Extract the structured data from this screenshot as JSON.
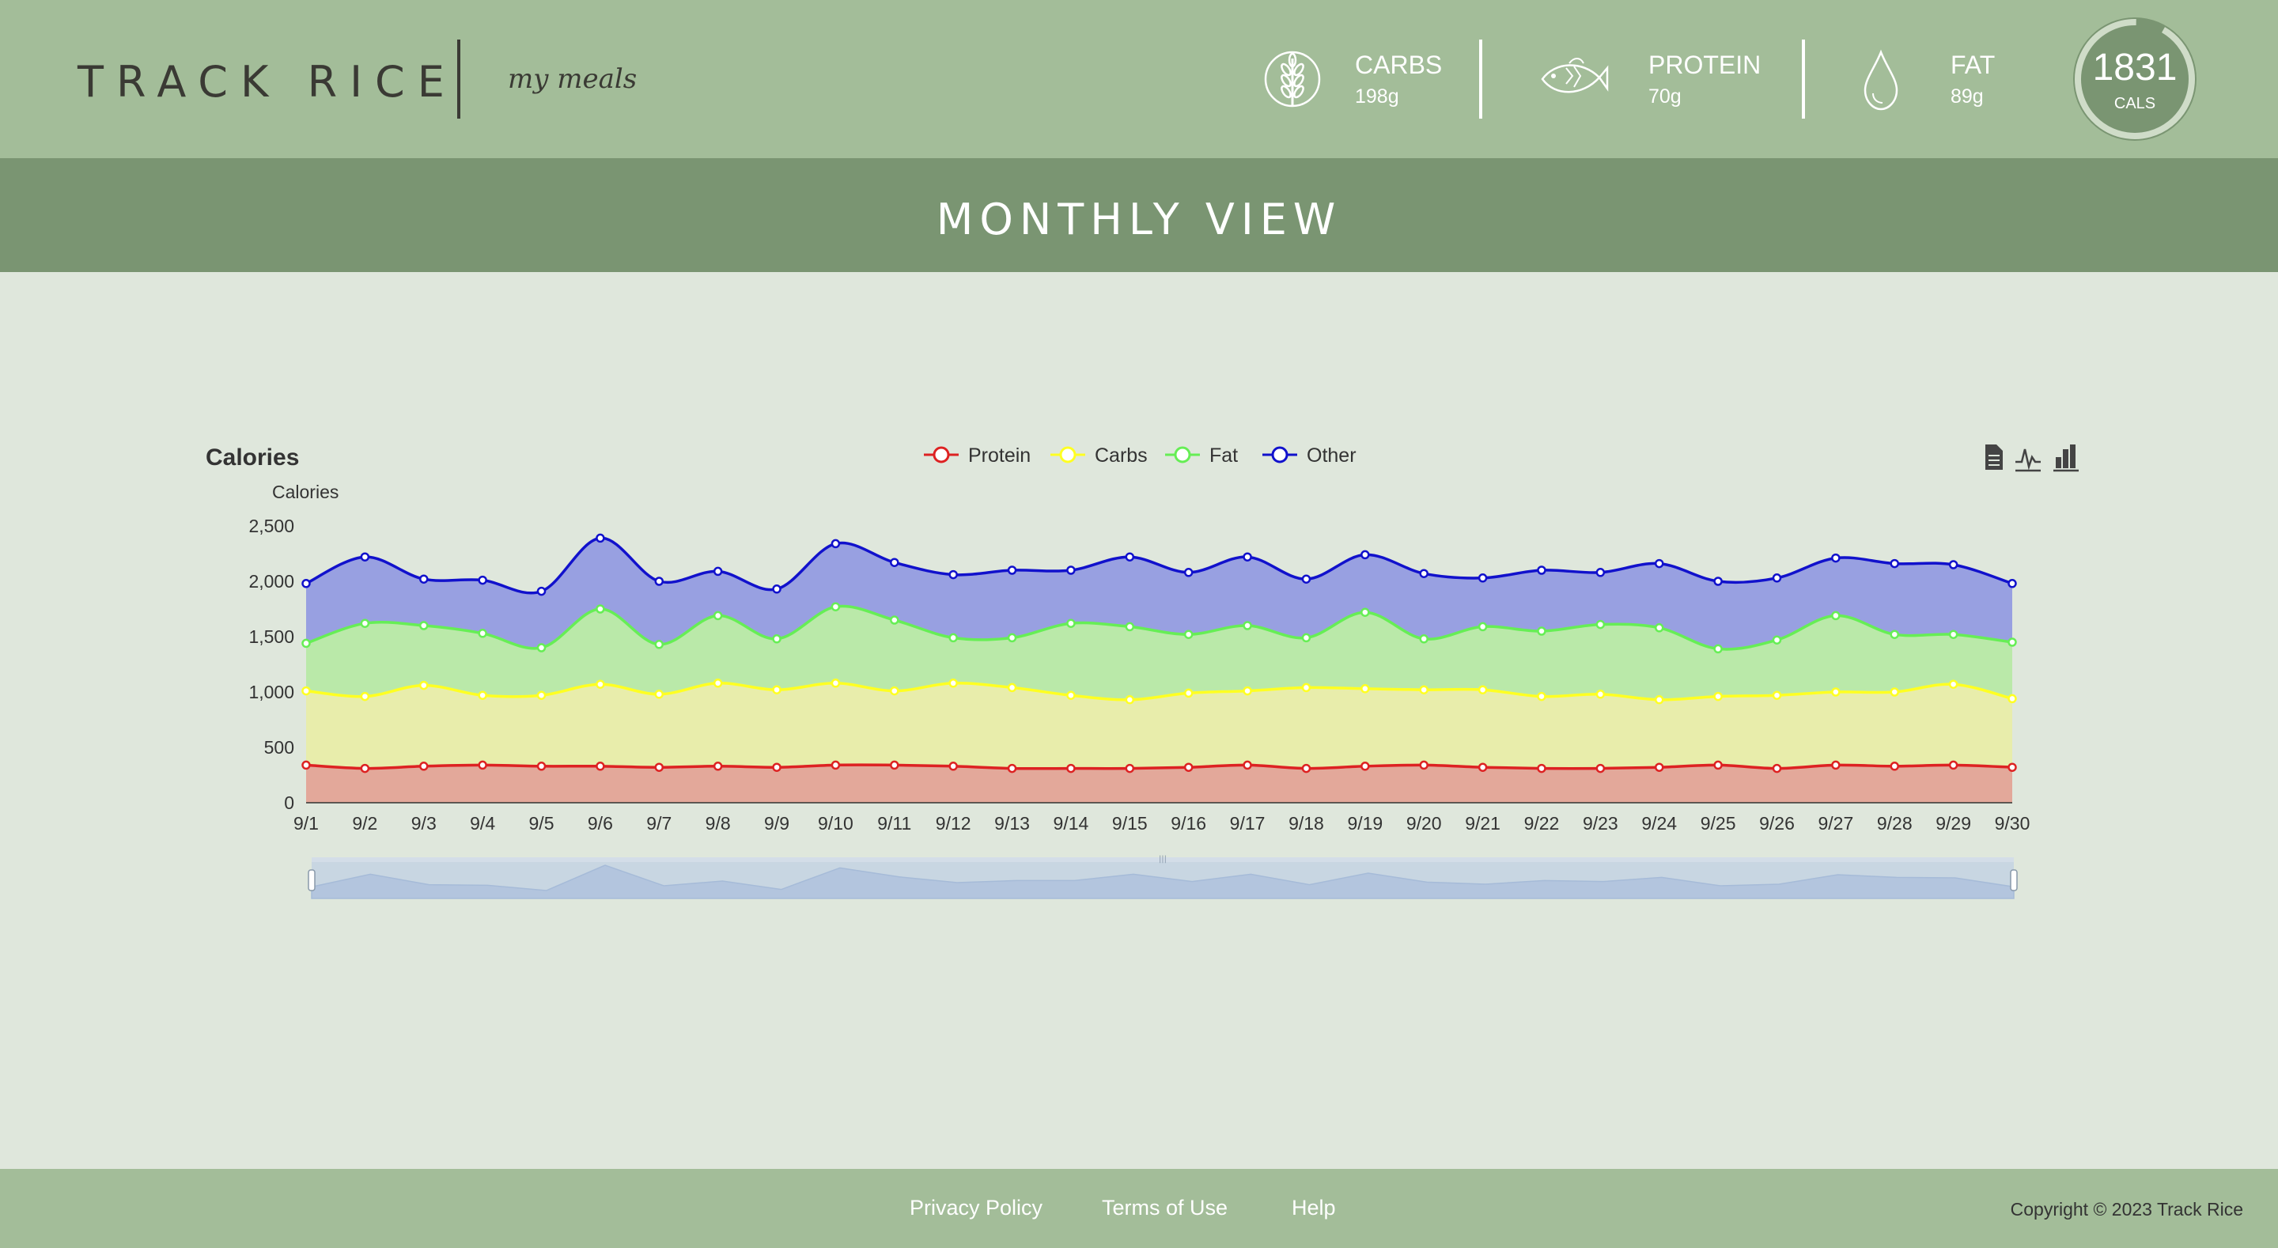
{
  "header": {
    "brand": "TRACK RICE",
    "subtitle": "my meals",
    "macros": [
      {
        "label": "CARBS",
        "amount": "198g",
        "icon": "wheat-icon"
      },
      {
        "label": "PROTEIN",
        "amount": "70g",
        "icon": "fish-icon"
      },
      {
        "label": "FAT",
        "amount": "89g",
        "icon": "drop-icon"
      }
    ],
    "calories": {
      "value": "1831",
      "unit": "CALS",
      "ring_fraction": 0.92
    }
  },
  "banner": {
    "title": "MONTHLY VIEW"
  },
  "colors": {
    "header_bg": "#a3bd99",
    "banner_bg": "#7a9572",
    "page_bg": "#dfe7dc",
    "protein": "#dd2222",
    "carbs": "#ffff22",
    "fat": "#66ee55",
    "other": "#1111cc"
  },
  "chart_tools": [
    "data-view-icon",
    "line-chart-icon",
    "bar-chart-icon"
  ],
  "chart_data": {
    "type": "area",
    "stacked": true,
    "title": "Calories",
    "ylabel": "Calories",
    "ylim": [
      0,
      2500
    ],
    "yticks": [
      "0",
      "500",
      "1,000",
      "1,500",
      "2,000",
      "2,500"
    ],
    "grid": false,
    "legend_position": "top-center",
    "x": [
      "9/1",
      "9/2",
      "9/3",
      "9/4",
      "9/5",
      "9/6",
      "9/7",
      "9/8",
      "9/9",
      "9/10",
      "9/11",
      "9/12",
      "9/13",
      "9/14",
      "9/15",
      "9/16",
      "9/17",
      "9/18",
      "9/19",
      "9/20",
      "9/21",
      "9/22",
      "9/23",
      "9/24",
      "9/25",
      "9/26",
      "9/27",
      "9/28",
      "9/29",
      "9/30"
    ],
    "series": [
      {
        "name": "Protein",
        "color": "#dd2222",
        "fill": "#e3a89a",
        "values": [
          340,
          310,
          330,
          340,
          330,
          330,
          320,
          330,
          320,
          340,
          340,
          330,
          310,
          310,
          310,
          320,
          340,
          310,
          330,
          340,
          320,
          310,
          310,
          320,
          340,
          310,
          340,
          330,
          340,
          320
        ]
      },
      {
        "name": "Carbs",
        "color": "#ffff22",
        "fill": "#e8edab",
        "values": [
          670,
          650,
          730,
          630,
          640,
          740,
          660,
          750,
          700,
          740,
          670,
          750,
          730,
          660,
          620,
          670,
          670,
          730,
          700,
          680,
          700,
          650,
          670,
          610,
          620,
          660,
          660,
          670,
          730,
          620
        ]
      },
      {
        "name": "Fat",
        "color": "#66ee55",
        "fill": "#bae9a9",
        "values": [
          430,
          660,
          540,
          560,
          430,
          680,
          450,
          610,
          460,
          690,
          640,
          410,
          450,
          650,
          660,
          530,
          590,
          450,
          690,
          460,
          570,
          590,
          630,
          650,
          430,
          500,
          690,
          520,
          450,
          510
        ]
      },
      {
        "name": "Other",
        "color": "#1111cc",
        "fill": "#98a0e1",
        "values": [
          540,
          600,
          420,
          480,
          510,
          640,
          570,
          400,
          450,
          570,
          520,
          570,
          610,
          480,
          630,
          560,
          620,
          530,
          520,
          590,
          440,
          550,
          470,
          580,
          610,
          560,
          520,
          640,
          630,
          530
        ]
      }
    ],
    "zoom_range": [
      0,
      100
    ]
  },
  "footer": {
    "links": [
      "Privacy Policy",
      "Terms of Use",
      "Help"
    ],
    "copyright": "Copyright © 2023 Track Rice"
  }
}
